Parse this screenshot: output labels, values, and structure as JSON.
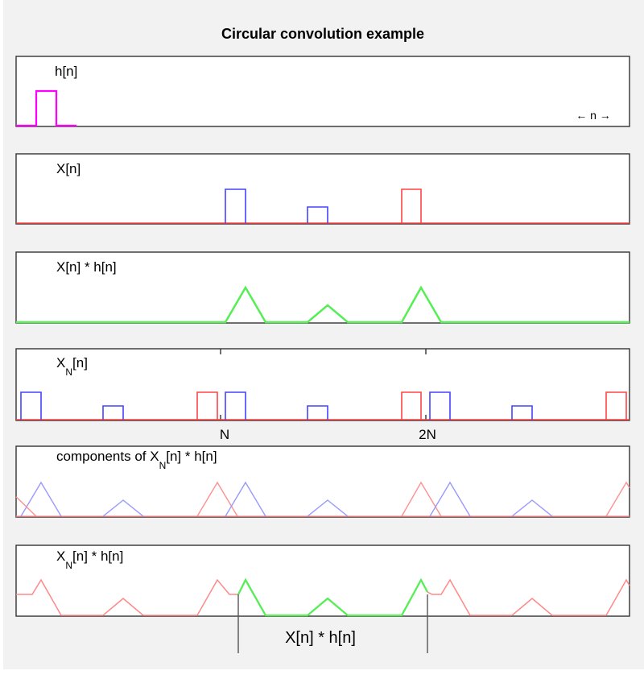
{
  "title": "Circular convolution example",
  "panels": [
    {
      "id": "h",
      "label_main": "h[n]",
      "label_sub": "",
      "label_rest": "",
      "note": "← n →"
    },
    {
      "id": "x",
      "label_main": "X[n]",
      "label_sub": "",
      "label_rest": ""
    },
    {
      "id": "conv",
      "label_main": "X[n] * h[n]",
      "label_sub": "",
      "label_rest": ""
    },
    {
      "id": "xn",
      "label_main": "X",
      "label_sub": "N",
      "label_rest": "[n]"
    },
    {
      "id": "components",
      "label_main": "components of X",
      "label_sub": "N",
      "label_rest": "[n] * h[n]"
    },
    {
      "id": "result",
      "label_main": "X",
      "label_sub": "N",
      "label_rest": "[n] * h[n]"
    }
  ],
  "period_labels": [
    "N",
    "2N"
  ],
  "bottom_label": "X[n] * h[n]",
  "colors": {
    "background": "#f2f2f2",
    "frame": "#333333",
    "h": "#ff00ff",
    "x_blue": "#4444ff",
    "x_red": "#ff4444",
    "conv_green": "#55ee55",
    "comp_blue": "#9999ff",
    "comp_red": "#ff9090",
    "result_red": "#ff8888",
    "result_green": "#55ee55",
    "markers": "#555555"
  }
}
